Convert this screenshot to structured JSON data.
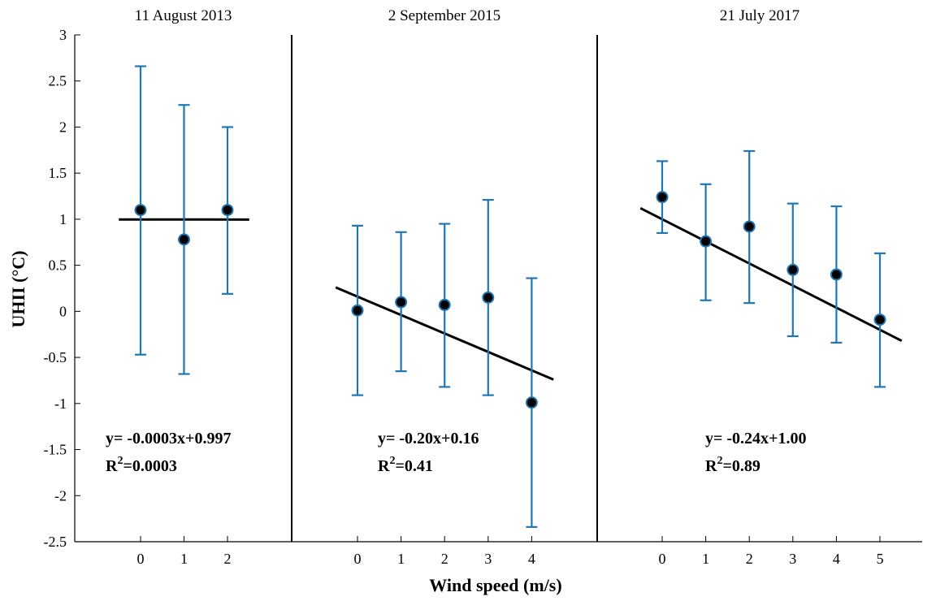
{
  "chart_data": {
    "type": "scatter",
    "ylabel": "UHII (°C)",
    "xlabel": "Wind speed (m/s)",
    "ylim": [
      -2.5,
      3
    ],
    "yticks": [
      "3",
      "2.5",
      "2",
      "1.5",
      "1",
      "0.5",
      "0",
      "-0.5",
      "-1",
      "-1.5",
      "-2",
      "-2.5"
    ],
    "colors": {
      "errorbar": "#1f77b4",
      "marker": "#000000",
      "fit": "#000000",
      "frame": "#000000"
    },
    "panels": [
      {
        "title": "11 August 2013",
        "x": [
          0,
          1,
          2
        ],
        "xtick_labels": [
          "0",
          "1",
          "2"
        ],
        "y": [
          1.1,
          0.78,
          1.1
        ],
        "err_low": [
          -0.47,
          -0.68,
          0.19
        ],
        "err_high": [
          2.66,
          2.24,
          2.0
        ],
        "fit": {
          "slope": -0.0003,
          "intercept": 0.997,
          "x_range": [
            -0.5,
            2.5
          ]
        },
        "equation": "y= -0.0003x+0.997",
        "r2_label": "R",
        "r2_sup": "2",
        "r2_value": "=0.0003"
      },
      {
        "title": "2 September 2015",
        "x": [
          0,
          1,
          2,
          3,
          4
        ],
        "xtick_labels": [
          "0",
          "1",
          "2",
          "3",
          "4"
        ],
        "y": [
          0.01,
          0.1,
          0.07,
          0.15,
          -0.99
        ],
        "err_low": [
          -0.91,
          -0.65,
          -0.82,
          -0.91,
          -2.34
        ],
        "err_high": [
          0.93,
          0.86,
          0.95,
          1.21,
          0.36
        ],
        "fit": {
          "slope": -0.2,
          "intercept": 0.16,
          "x_range": [
            -0.5,
            4.5
          ]
        },
        "equation": "y= -0.20x+0.16",
        "r2_label": "R",
        "r2_sup": "2",
        "r2_value": "=0.41"
      },
      {
        "title": "21 July 2017",
        "x": [
          0,
          1,
          2,
          3,
          4,
          5
        ],
        "xtick_labels": [
          "0",
          "1",
          "2",
          "3",
          "4",
          "5"
        ],
        "y": [
          1.24,
          0.76,
          0.92,
          0.45,
          0.4,
          -0.09
        ],
        "err_low": [
          0.85,
          0.12,
          0.09,
          -0.27,
          -0.34,
          -0.82
        ],
        "err_high": [
          1.63,
          1.38,
          1.74,
          1.17,
          1.14,
          0.63
        ],
        "fit": {
          "slope": -0.24,
          "intercept": 1.0,
          "x_range": [
            -0.5,
            5.5
          ]
        },
        "equation": "y= -0.24x+1.00",
        "r2_label": "R",
        "r2_sup": "2",
        "r2_value": "=0.89"
      }
    ]
  }
}
